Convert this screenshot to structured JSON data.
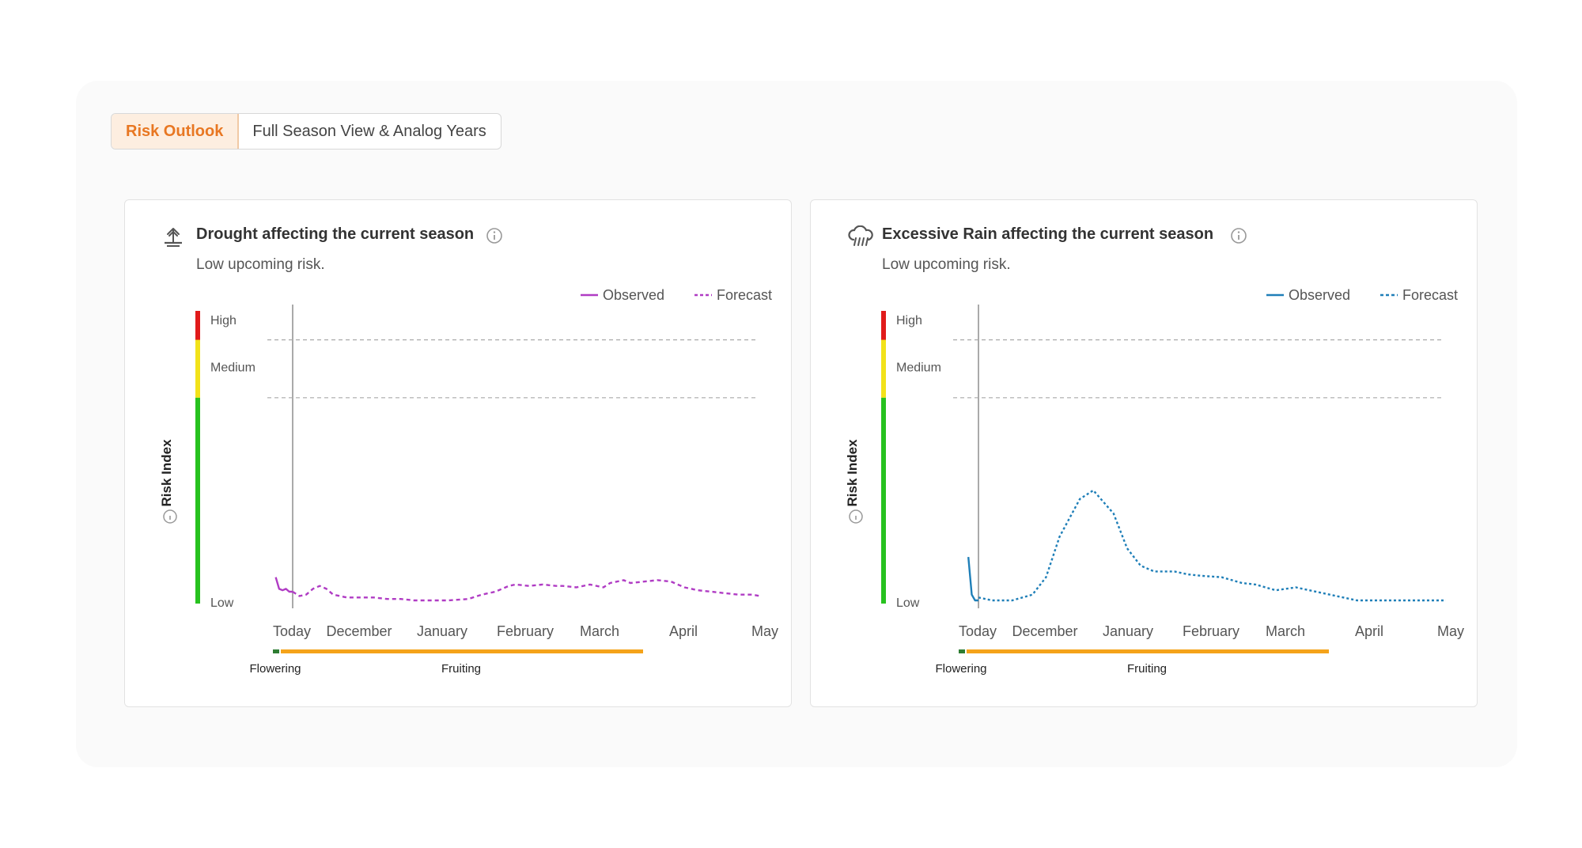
{
  "tabs": {
    "active": "Risk Outlook",
    "other": "Full Season View & Analog Years"
  },
  "colors": {
    "accent": "#e87722",
    "drought_series": "#b03cc4",
    "rain_series": "#1f7fb8",
    "risk_high": "#e11b1b",
    "risk_medium": "#f2e21a",
    "risk_low": "#27c21f",
    "stage_flowering": "#2e7d32",
    "stage_fruiting": "#f5a31a"
  },
  "cards": [
    {
      "title": "Drought affecting the current season",
      "subtitle": "Low upcoming risk.",
      "icon": "drought-icon",
      "legend": {
        "observed": "Observed",
        "forecast": "Forecast"
      },
      "y_axis_label": "Risk Index",
      "levels": {
        "high": "High",
        "medium": "Medium",
        "low": "Low"
      },
      "x_ticks": [
        "Today",
        "December",
        "January",
        "February",
        "March",
        "April",
        "May"
      ],
      "stages": {
        "flowering": "Flowering",
        "fruiting": "Fruiting"
      }
    },
    {
      "title": "Excessive Rain affecting the current season",
      "subtitle": "Low upcoming risk.",
      "icon": "rain-cloud-icon",
      "legend": {
        "observed": "Observed",
        "forecast": "Forecast"
      },
      "y_axis_label": "Risk Index",
      "levels": {
        "high": "High",
        "medium": "Medium",
        "low": "Low"
      },
      "x_ticks": [
        "Today",
        "December",
        "January",
        "February",
        "March",
        "April",
        "May"
      ],
      "stages": {
        "flowering": "Flowering",
        "fruiting": "Fruiting"
      }
    }
  ],
  "chart_data": [
    {
      "type": "line",
      "title": "Drought affecting the current season",
      "ylabel": "Risk Index",
      "xlabel": "",
      "ylim": [
        0,
        100
      ],
      "thresholds": {
        "low_medium": 70,
        "medium_high": 90
      },
      "x_ticks": [
        "Today",
        "December",
        "January",
        "February",
        "March",
        "April",
        "May"
      ],
      "series": [
        {
          "name": "Observed",
          "style": "solid",
          "x": [
            -0.25,
            -0.2,
            -0.15,
            -0.1,
            -0.05,
            0
          ],
          "values": [
            8,
            4,
            3.5,
            4,
            3,
            3
          ]
        },
        {
          "name": "Forecast",
          "style": "dashed",
          "x": [
            0,
            0.1,
            0.2,
            0.3,
            0.4,
            0.5,
            0.6,
            0.8,
            1.0,
            1.2,
            1.4,
            1.6,
            1.8,
            2.0,
            2.3,
            2.6,
            2.8,
            3.0,
            3.2,
            3.3,
            3.5,
            3.7,
            3.9,
            4.0,
            4.2,
            4.4,
            4.6,
            4.7,
            4.9,
            5.0,
            5.2,
            5.4,
            5.6,
            5.8,
            6.0,
            6.2,
            6.4,
            6.6,
            6.8,
            6.92
          ],
          "values": [
            3,
            1.5,
            2,
            4,
            5,
            4,
            2,
            1,
            1,
            1,
            0.5,
            0.5,
            0,
            0,
            0,
            0.5,
            2,
            3,
            5,
            5.5,
            5,
            5.5,
            5,
            5,
            4.5,
            5.5,
            4.5,
            6,
            7,
            6,
            6.5,
            7,
            6.5,
            4.5,
            3.5,
            3,
            2.5,
            2,
            2,
            1.5
          ]
        }
      ]
    },
    {
      "type": "line",
      "title": "Excessive Rain affecting the current season",
      "ylabel": "Risk Index",
      "xlabel": "",
      "ylim": [
        0,
        100
      ],
      "thresholds": {
        "low_medium": 70,
        "medium_high": 90
      },
      "x_ticks": [
        "Today",
        "December",
        "January",
        "February",
        "March",
        "April",
        "May"
      ],
      "series": [
        {
          "name": "Observed",
          "style": "solid",
          "x": [
            -0.15,
            -0.1,
            -0.05,
            0
          ],
          "values": [
            15,
            2,
            0,
            0
          ]
        },
        {
          "name": "Forecast",
          "style": "dashed",
          "x": [
            0,
            0.2,
            0.5,
            0.8,
            1.0,
            1.2,
            1.5,
            1.7,
            2.0,
            2.2,
            2.4,
            2.6,
            2.9,
            3.1,
            3.3,
            3.6,
            3.9,
            4.1,
            4.4,
            4.7,
            4.8,
            5.1,
            5.4,
            5.6,
            6.0,
            6.5,
            6.92
          ],
          "values": [
            1,
            0,
            0,
            2,
            8,
            22,
            35,
            38,
            30,
            18,
            12,
            10,
            10,
            9,
            8.5,
            8,
            6,
            5.5,
            3.5,
            4.5,
            4,
            2.5,
            1,
            0,
            0,
            0,
            0
          ]
        }
      ]
    }
  ]
}
